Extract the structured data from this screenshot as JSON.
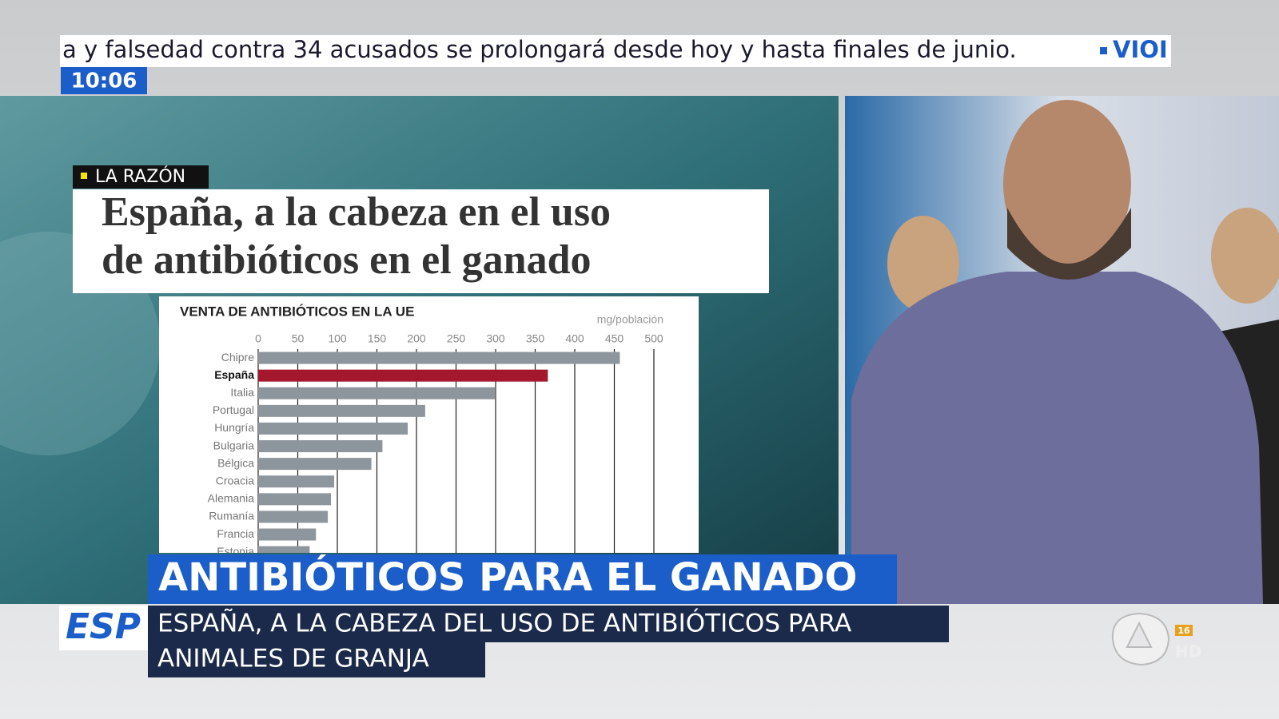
{
  "ticker": {
    "text": "a y falsedad contra 34 acusados se prolongará desde hoy y hasta finales de junio.",
    "next": "VIOI"
  },
  "clock": "10:06",
  "source": "LA RAZÓN",
  "headline": [
    "España, a la cabeza en el uso",
    "de antibióticos en el ganado"
  ],
  "banner": "ANTIBIÓTICOS PARA EL GANADO",
  "section": "ESP",
  "subtitle": [
    "ESPAÑA, A LA CABEZA DEL USO DE ANTIBIÓTICOS PARA",
    "ANIMALES DE GRANJA"
  ],
  "rating": "16",
  "quality": "HD",
  "chart_data": {
    "type": "bar",
    "orientation": "horizontal",
    "title": "VENTA DE ANTIBIÓTICOS EN LA UE",
    "unit": "mg/población",
    "categories": [
      "Chipre",
      "España",
      "Italia",
      "Portugal",
      "Hungría",
      "Bulgaria",
      "Bélgica",
      "Croacia",
      "Alemania",
      "Rumanía",
      "Francia",
      "Estonia"
    ],
    "values": [
      457,
      366,
      299,
      211,
      189,
      157,
      143,
      96,
      92,
      88,
      73,
      65
    ],
    "colors": [
      "#8e969d",
      "#a3182c",
      "#8e969d",
      "#8e969d",
      "#8e969d",
      "#8e969d",
      "#8e969d",
      "#8e969d",
      "#8e969d",
      "#8e969d",
      "#8e969d",
      "#8e969d"
    ],
    "xlim": [
      0,
      500
    ],
    "xticks": [
      0,
      50,
      100,
      150,
      200,
      250,
      300,
      350,
      400,
      450,
      500
    ],
    "grid": true
  }
}
